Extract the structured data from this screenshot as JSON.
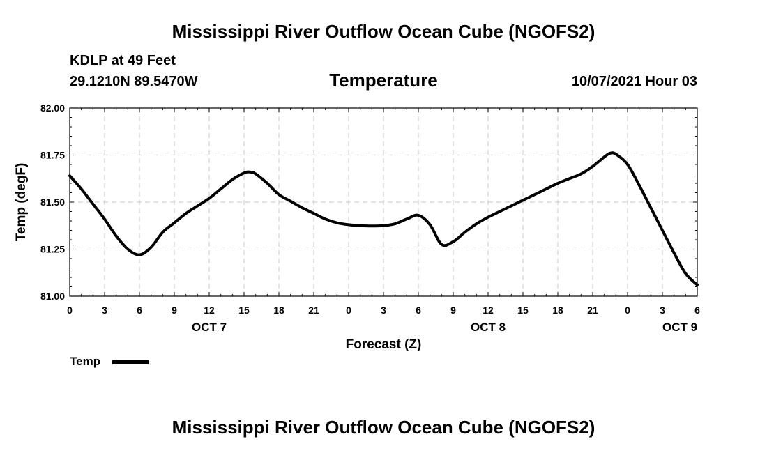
{
  "header": {
    "title": "Mississippi River Outflow Ocean Cube (NGOFS2)",
    "station": "KDLP at 49 Feet",
    "coords": "29.1210N  89.5470W",
    "subtitle": "Temperature",
    "run_time": "10/07/2021 Hour 03"
  },
  "footer": {
    "title": "Mississippi River Outflow Ocean Cube (NGOFS2)"
  },
  "legend": {
    "label": "Temp"
  },
  "chart_data": {
    "type": "line",
    "title": "Temperature",
    "xlabel": "Forecast (Z)",
    "ylabel": "Temp (degF)",
    "xlim": [
      0,
      54
    ],
    "ylim": [
      81.0,
      82.0
    ],
    "grid": true,
    "x_ticks": [
      0,
      3,
      6,
      9,
      12,
      15,
      18,
      21,
      24,
      27,
      30,
      33,
      36,
      39,
      42,
      45,
      48,
      51,
      54
    ],
    "x_tick_labels": [
      "0",
      "3",
      "6",
      "9",
      "12",
      "15",
      "18",
      "21",
      "0",
      "3",
      "6",
      "9",
      "12",
      "15",
      "18",
      "21",
      "0",
      "3",
      "6"
    ],
    "day_labels": [
      {
        "x": 12,
        "label": "OCT 7"
      },
      {
        "x": 36,
        "label": "OCT 8"
      },
      {
        "x": 52.5,
        "label": "OCT 9"
      }
    ],
    "y_ticks": [
      81.0,
      81.25,
      81.5,
      81.75,
      82.0
    ],
    "y_tick_labels": [
      "81.00",
      "81.25",
      "81.50",
      "81.75",
      "82.00"
    ],
    "series": [
      {
        "name": "Temp",
        "color": "#000000",
        "x": [
          0,
          1,
          2,
          3,
          4,
          5,
          6,
          7,
          8,
          9,
          10,
          11,
          12,
          13,
          14,
          15,
          15.5,
          16,
          17,
          18,
          19,
          20,
          21,
          22,
          23,
          24,
          25,
          26,
          27,
          28,
          29,
          30,
          31,
          32,
          33,
          34,
          35,
          36,
          37,
          38,
          39,
          40,
          41,
          42,
          43,
          44,
          45,
          46,
          46.5,
          47,
          48,
          49,
          50,
          51,
          52,
          53,
          54
        ],
        "values": [
          81.64,
          81.57,
          81.49,
          81.41,
          81.32,
          81.25,
          81.22,
          81.26,
          81.34,
          81.39,
          81.44,
          81.48,
          81.52,
          81.57,
          81.62,
          81.655,
          81.66,
          81.65,
          81.6,
          81.54,
          81.505,
          81.47,
          81.44,
          81.41,
          81.39,
          81.38,
          81.375,
          81.373,
          81.375,
          81.385,
          81.41,
          81.43,
          81.38,
          81.275,
          81.29,
          81.34,
          81.385,
          81.42,
          81.45,
          81.48,
          81.51,
          81.54,
          81.57,
          81.6,
          81.625,
          81.65,
          81.69,
          81.74,
          81.76,
          81.755,
          81.7,
          81.59,
          81.47,
          81.35,
          81.23,
          81.12,
          81.06
        ]
      }
    ]
  }
}
